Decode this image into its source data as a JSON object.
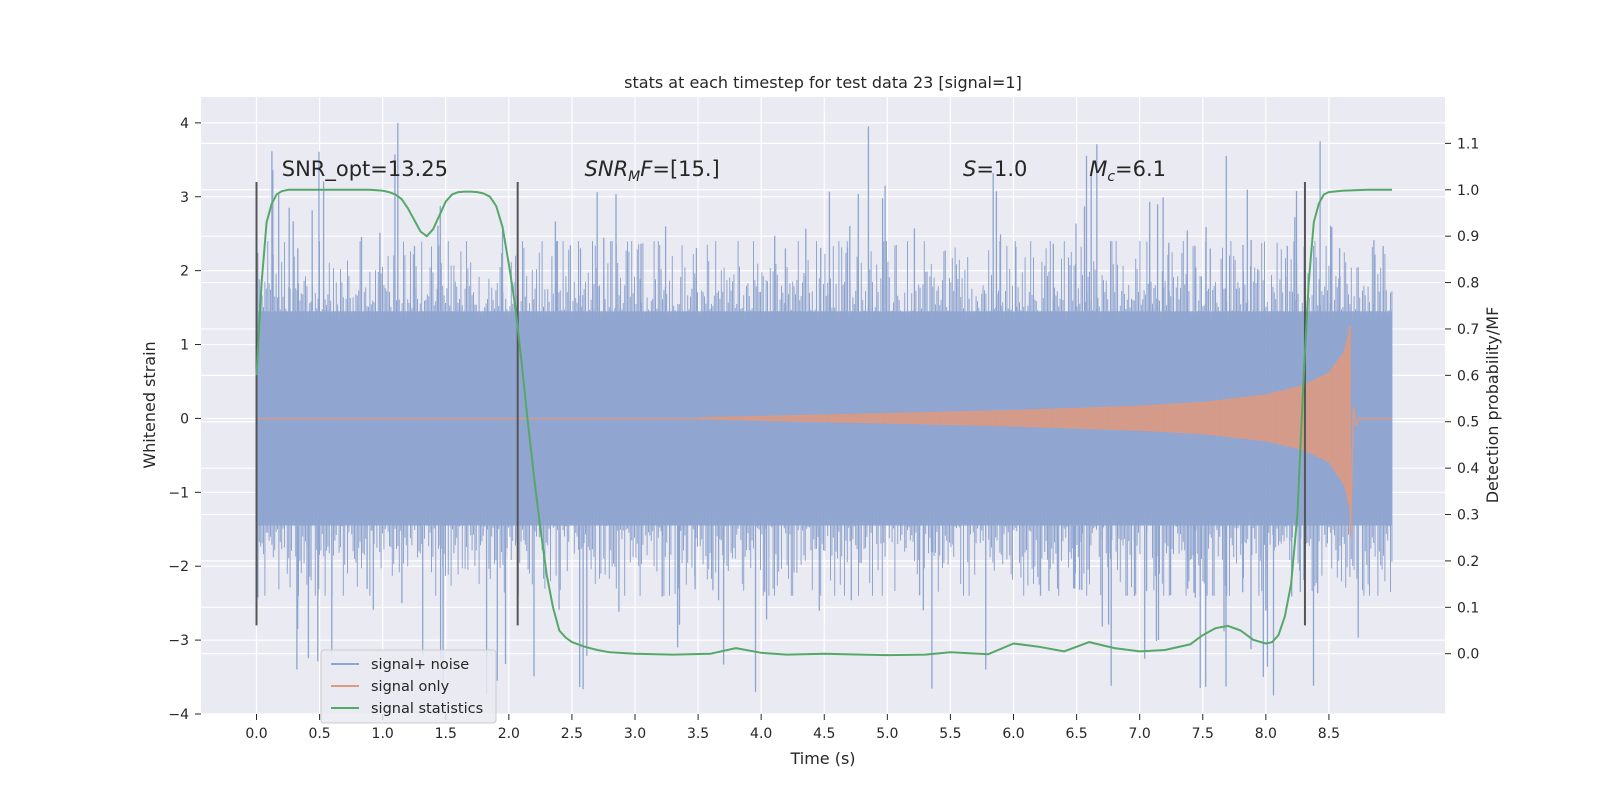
{
  "chart_data": {
    "type": "line",
    "title": "stats at each timestep for test data 23 [signal=1]",
    "xlabel": "Time (s)",
    "ylabel": "Whitened strain",
    "y2label": "Detection probability/MF",
    "xlim": [
      -0.44,
      9.42
    ],
    "ylim": [
      -4.0,
      4.35
    ],
    "y2lim": [
      -0.13,
      1.2
    ],
    "x_ticks": [
      0.0,
      0.5,
      1.0,
      1.5,
      2.0,
      2.5,
      3.0,
      3.5,
      4.0,
      4.5,
      5.0,
      5.5,
      6.0,
      6.5,
      7.0,
      7.5,
      8.0,
      8.5
    ],
    "x_tick_labels": [
      "0.0",
      "0.5",
      "1.0",
      "1.5",
      "2.0",
      "2.5",
      "3.0",
      "3.5",
      "4.0",
      "4.5",
      "5.0",
      "5.5",
      "6.0",
      "6.5",
      "7.0",
      "7.5",
      "8.0",
      "8.5"
    ],
    "y_ticks": [
      4,
      3,
      2,
      1,
      0,
      -1,
      -2,
      -3,
      -4
    ],
    "y_tick_labels": [
      "4",
      "3",
      "2",
      "1",
      "0",
      "−1",
      "−2",
      "−3",
      "−4"
    ],
    "y2_ticks": [
      1.1,
      1.0,
      0.9,
      0.8,
      0.7,
      0.6,
      0.5,
      0.4,
      0.3,
      0.2,
      0.1,
      0.0
    ],
    "y2_tick_labels": [
      "1.1",
      "1.0",
      "0.9",
      "0.8",
      "0.7",
      "0.6",
      "0.5",
      "0.4",
      "0.3",
      "0.2",
      "0.1",
      "0.0"
    ],
    "grid": true,
    "legend_position": "lower-left",
    "annotations": [
      {
        "text": "SNR_opt=13.25",
        "x": 0.2
      },
      {
        "text": "SNR_MF=[15.]",
        "x": 2.6
      },
      {
        "text": "S=1.0",
        "x": 5.6
      },
      {
        "text": "M_c=6.1",
        "x": 6.6
      }
    ],
    "annotations_y": 3.2,
    "vertical_markers": [
      {
        "x": 0.0,
        "ymin": -2.8,
        "ymax": 3.2
      },
      {
        "x": 2.07,
        "ymin": -2.8,
        "ymax": 3.2
      },
      {
        "x": 8.31,
        "ymin": -2.8,
        "ymax": 3.2
      }
    ],
    "series": [
      {
        "name": "signal+ noise",
        "color": "#8fa5cf",
        "kind": "noise",
        "x_range": [
          0.0,
          9.0
        ],
        "band_envelope": 1.45,
        "typical_peak": 2.1,
        "max_peak": 4.0,
        "min_trough": -3.65
      },
      {
        "name": "signal only",
        "color": "#dd9a82",
        "kind": "chirp",
        "x_range": [
          0.0,
          9.0
        ],
        "start": 3.5,
        "merger_time": 8.67,
        "envelope": [
          [
            3.5,
            0.01
          ],
          [
            4.0,
            0.03
          ],
          [
            5.0,
            0.07
          ],
          [
            6.0,
            0.11
          ],
          [
            7.0,
            0.17
          ],
          [
            7.5,
            0.22
          ],
          [
            8.0,
            0.32
          ],
          [
            8.3,
            0.45
          ],
          [
            8.5,
            0.62
          ],
          [
            8.62,
            0.9
          ],
          [
            8.67,
            1.25
          ]
        ],
        "ringdown_min": -1.6
      },
      {
        "name": "signal statistics",
        "color": "#55a868",
        "axis": "right",
        "x": [
          0.0,
          0.04,
          0.08,
          0.12,
          0.16,
          0.2,
          0.25,
          0.3,
          0.4,
          0.5,
          0.6,
          0.7,
          0.8,
          0.9,
          1.0,
          1.05,
          1.1,
          1.15,
          1.2,
          1.25,
          1.3,
          1.35,
          1.4,
          1.45,
          1.5,
          1.55,
          1.6,
          1.65,
          1.7,
          1.75,
          1.8,
          1.85,
          1.9,
          1.95,
          2.0,
          2.05,
          2.1,
          2.15,
          2.2,
          2.25,
          2.3,
          2.35,
          2.4,
          2.45,
          2.5,
          2.6,
          2.7,
          2.8,
          3.0,
          3.3,
          3.6,
          3.8,
          4.0,
          4.2,
          4.5,
          4.8,
          5.0,
          5.3,
          5.5,
          5.8,
          6.0,
          6.2,
          6.4,
          6.6,
          6.8,
          7.0,
          7.2,
          7.4,
          7.5,
          7.6,
          7.7,
          7.8,
          7.9,
          8.0,
          8.05,
          8.1,
          8.15,
          8.2,
          8.25,
          8.3,
          8.34,
          8.38,
          8.42,
          8.46,
          8.5,
          8.6,
          8.8,
          9.0
        ],
        "values": [
          0.6,
          0.8,
          0.93,
          0.97,
          0.99,
          0.997,
          1.0,
          1.0,
          1.0,
          1.0,
          1.0,
          1.0,
          1.0,
          1.0,
          0.998,
          0.995,
          0.99,
          0.98,
          0.96,
          0.935,
          0.91,
          0.9,
          0.915,
          0.945,
          0.975,
          0.99,
          0.995,
          0.996,
          0.996,
          0.995,
          0.992,
          0.985,
          0.965,
          0.92,
          0.84,
          0.75,
          0.63,
          0.5,
          0.38,
          0.27,
          0.17,
          0.1,
          0.05,
          0.035,
          0.025,
          0.015,
          0.008,
          0.003,
          0.0,
          -0.002,
          0.0,
          0.012,
          0.002,
          -0.002,
          0.0,
          -0.002,
          -0.003,
          -0.002,
          0.003,
          -0.001,
          0.022,
          0.015,
          0.005,
          0.025,
          0.012,
          0.005,
          0.008,
          0.02,
          0.04,
          0.055,
          0.06,
          0.05,
          0.03,
          0.022,
          0.025,
          0.04,
          0.08,
          0.15,
          0.3,
          0.6,
          0.8,
          0.93,
          0.97,
          0.99,
          0.995,
          0.998,
          1.0,
          1.0
        ]
      }
    ]
  }
}
